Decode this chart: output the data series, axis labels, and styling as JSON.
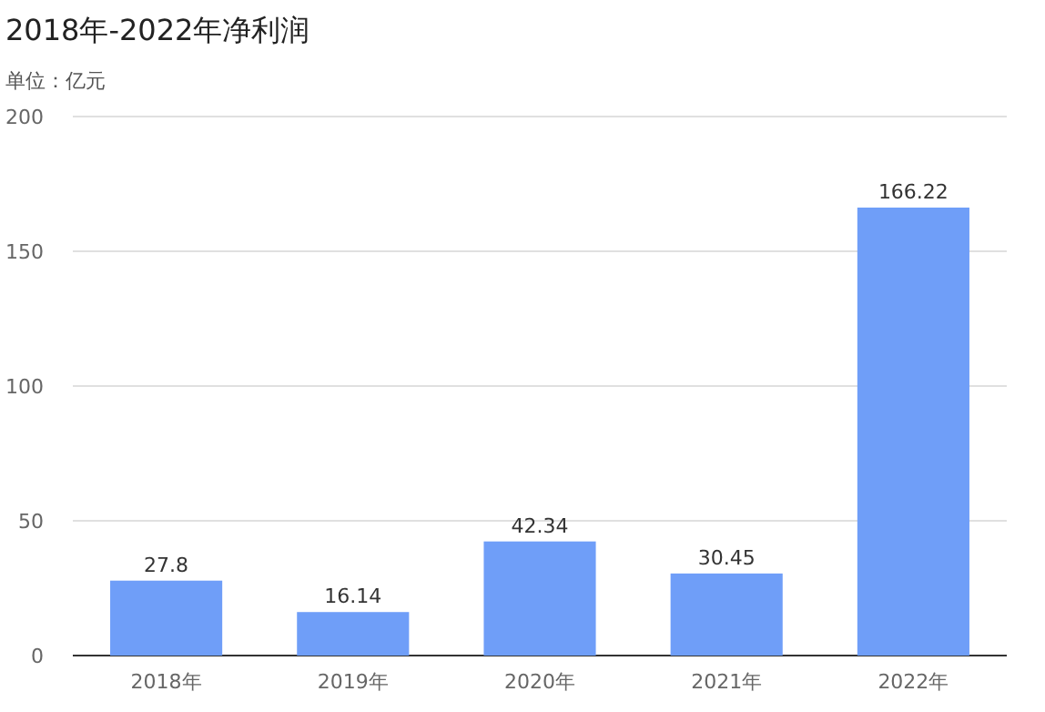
{
  "chart_data": {
    "type": "bar",
    "title": "2018年-2022年净利润",
    "subtitle": "单位：亿元",
    "categories": [
      "2018年",
      "2019年",
      "2020年",
      "2021年",
      "2022年"
    ],
    "values": [
      27.8,
      16.14,
      42.34,
      30.45,
      166.22
    ],
    "color": "#6f9ef8",
    "ylim": [
      0,
      200
    ],
    "yticks": [
      0,
      50,
      100,
      150,
      200
    ],
    "grid": "y",
    "data_labels": true
  }
}
